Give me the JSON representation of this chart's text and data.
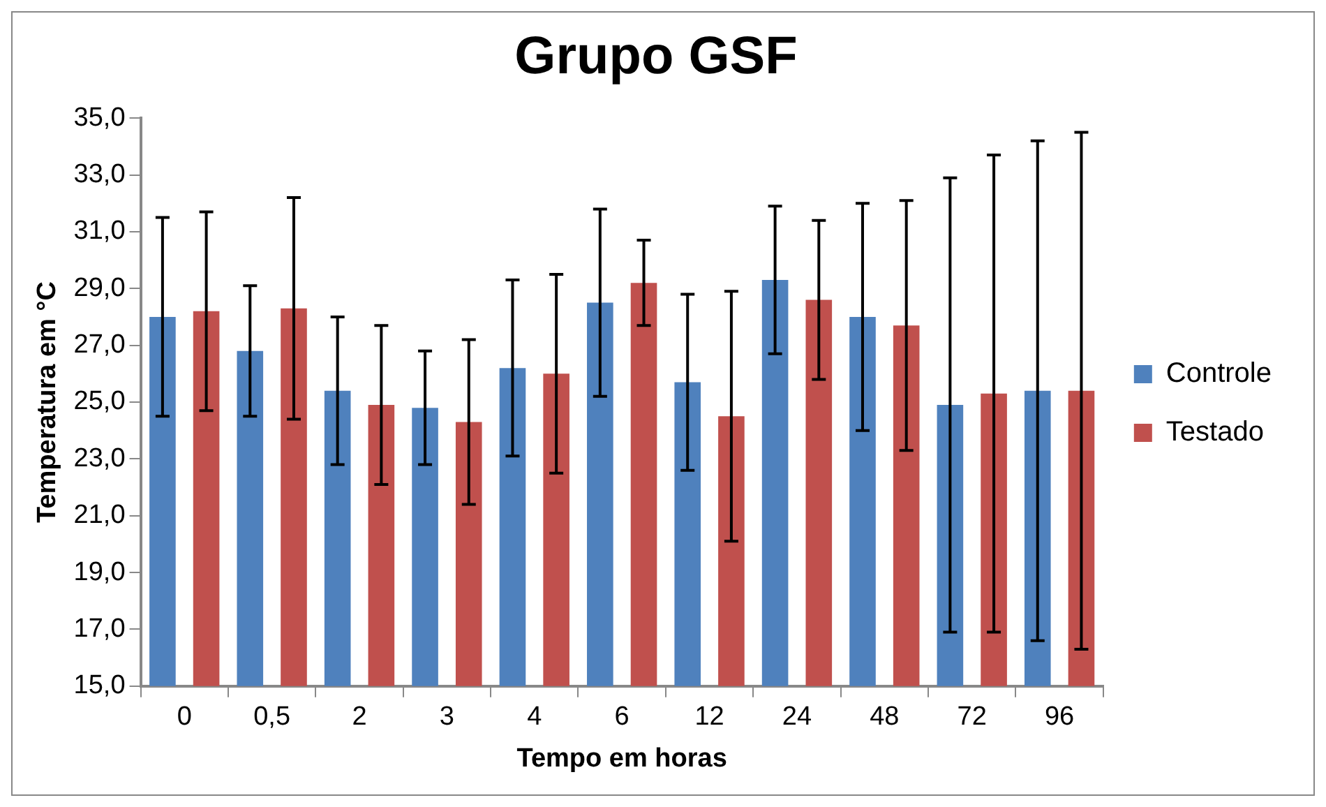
{
  "chart_data": {
    "type": "bar",
    "title": "Grupo GSF",
    "xlabel": "Tempo em horas",
    "ylabel": "Temperatura em °C",
    "categories": [
      "0",
      "0,5",
      "2",
      "3",
      "4",
      "6",
      "12",
      "24",
      "48",
      "72",
      "96"
    ],
    "series": [
      {
        "name": "Controle",
        "color": "#4f81bd",
        "values": [
          28.0,
          26.8,
          25.4,
          24.8,
          26.2,
          28.5,
          25.7,
          29.3,
          28.0,
          24.9,
          25.4
        ],
        "errors": [
          [
            24.5,
            31.5
          ],
          [
            24.5,
            29.1
          ],
          [
            22.8,
            28.0
          ],
          [
            22.8,
            26.8
          ],
          [
            23.1,
            29.3
          ],
          [
            25.2,
            31.8
          ],
          [
            22.6,
            28.8
          ],
          [
            26.7,
            31.9
          ],
          [
            24.0,
            32.0
          ],
          [
            16.9,
            32.9
          ],
          [
            16.6,
            34.2
          ]
        ]
      },
      {
        "name": "Testado",
        "color": "#c0504d",
        "values": [
          28.2,
          28.3,
          24.9,
          24.3,
          26.0,
          29.2,
          24.5,
          28.6,
          27.7,
          25.3,
          25.4
        ],
        "errors": [
          [
            24.7,
            31.7
          ],
          [
            24.4,
            32.2
          ],
          [
            22.1,
            27.7
          ],
          [
            21.4,
            27.2
          ],
          [
            22.5,
            29.5
          ],
          [
            27.7,
            30.7
          ],
          [
            20.1,
            28.9
          ],
          [
            25.8,
            31.4
          ],
          [
            23.3,
            32.1
          ],
          [
            16.9,
            33.7
          ],
          [
            16.3,
            34.5
          ]
        ]
      }
    ],
    "ylim": [
      15,
      35
    ],
    "yticks": [
      {
        "value": 15,
        "label": "15,0"
      },
      {
        "value": 17,
        "label": "17,0"
      },
      {
        "value": 19,
        "label": "19,0"
      },
      {
        "value": 21,
        "label": "21,0"
      },
      {
        "value": 23,
        "label": "23,0"
      },
      {
        "value": 25,
        "label": "25,0"
      },
      {
        "value": 27,
        "label": "27,0"
      },
      {
        "value": 29,
        "label": "29,0"
      },
      {
        "value": 31,
        "label": "31,0"
      },
      {
        "value": 33,
        "label": "33,0"
      },
      {
        "value": 35,
        "label": "35,0"
      }
    ],
    "grid": false,
    "legend": "right"
  }
}
